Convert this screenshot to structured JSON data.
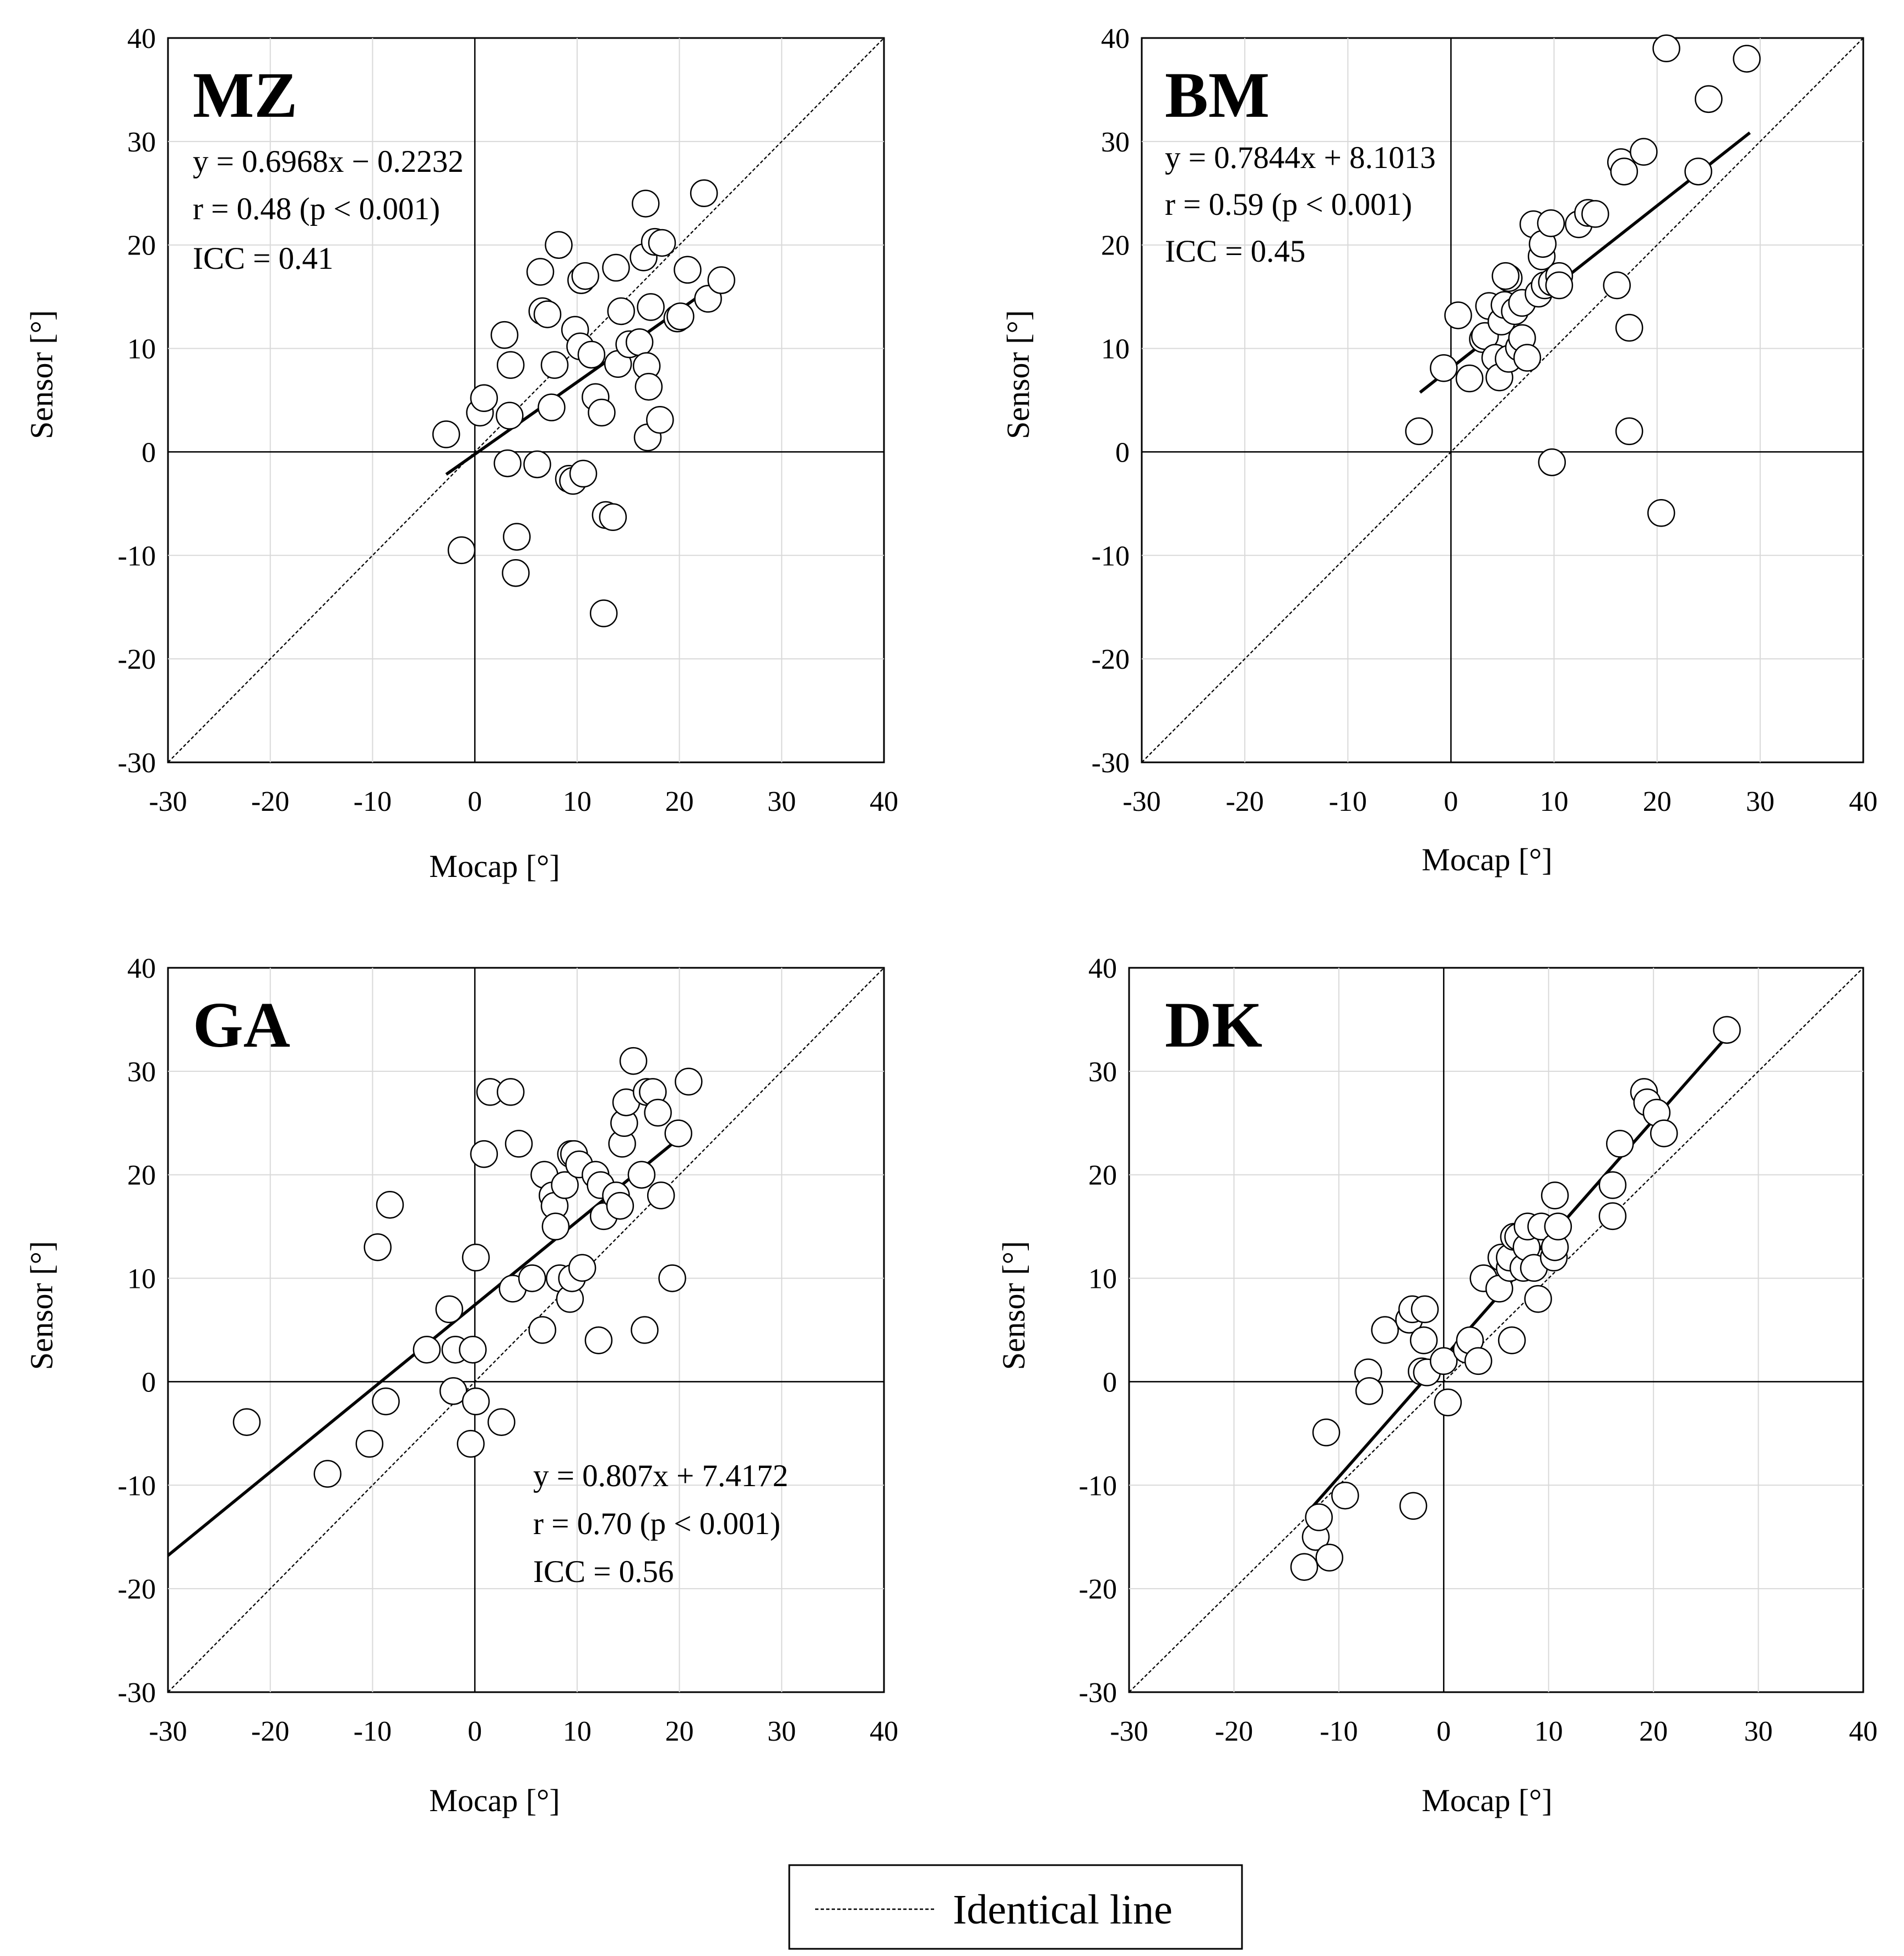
{
  "chart_data": [
    {
      "type": "scatter",
      "title": "MZ",
      "xlabel": "Mocap [°]",
      "ylabel": "Sensor [°]",
      "xlim": [
        -30,
        40
      ],
      "ylim": [
        -30,
        40
      ],
      "xticks": [
        -30,
        -20,
        -10,
        0,
        10,
        20,
        30,
        40
      ],
      "yticks": [
        -30,
        -20,
        -10,
        0,
        10,
        20,
        30,
        40
      ],
      "grid": true,
      "annotation_position": "top-left",
      "annotations": [
        "y = 0.6968x − 0.2232",
        "r = 0.48 (p < 0.001)",
        "ICC = 0.41"
      ],
      "fit": {
        "slope": 0.6968,
        "intercept": -0.2232,
        "x_range": [
          -2.8,
          24
        ]
      },
      "identity_line": true,
      "points": [
        [
          -2.8,
          1.7
        ],
        [
          -1.3,
          -9.5
        ],
        [
          0.5,
          3.8
        ],
        [
          0.9,
          5.2
        ],
        [
          2.9,
          11.3
        ],
        [
          3.5,
          8.4
        ],
        [
          3.4,
          3.5
        ],
        [
          3.2,
          -1.1
        ],
        [
          4.1,
          -8.2
        ],
        [
          4.0,
          -11.7
        ],
        [
          6.1,
          -1.2
        ],
        [
          6.4,
          17.4
        ],
        [
          6.6,
          13.6
        ],
        [
          7.1,
          13.3
        ],
        [
          7.5,
          4.3
        ],
        [
          7.8,
          8.4
        ],
        [
          8.2,
          20.0
        ],
        [
          9.2,
          -2.6
        ],
        [
          9.6,
          -2.8
        ],
        [
          9.8,
          11.8
        ],
        [
          10.3,
          10.2
        ],
        [
          10.4,
          16.6
        ],
        [
          10.8,
          17.0
        ],
        [
          10.6,
          -2.1
        ],
        [
          11.4,
          9.4
        ],
        [
          11.8,
          5.3
        ],
        [
          12.4,
          3.8
        ],
        [
          12.6,
          -15.6
        ],
        [
          12.8,
          -6.1
        ],
        [
          13.5,
          -6.3
        ],
        [
          13.8,
          17.8
        ],
        [
          14.0,
          8.5
        ],
        [
          14.3,
          13.6
        ],
        [
          15.1,
          10.4
        ],
        [
          16.1,
          10.6
        ],
        [
          16.5,
          18.8
        ],
        [
          16.7,
          24.0
        ],
        [
          16.8,
          8.3
        ],
        [
          17.2,
          14.0
        ],
        [
          17.0,
          6.3
        ],
        [
          16.9,
          1.4
        ],
        [
          17.6,
          20.3
        ],
        [
          18.3,
          20.2
        ],
        [
          18.1,
          3.1
        ],
        [
          19.8,
          12.9
        ],
        [
          20.1,
          13.1
        ],
        [
          20.8,
          17.6
        ],
        [
          22.4,
          25.0
        ],
        [
          22.8,
          14.8
        ],
        [
          24.1,
          16.6
        ]
      ]
    },
    {
      "type": "scatter",
      "title": "BM",
      "xlabel": "Mocap [°]",
      "ylabel": "Sensor [°]",
      "xlim": [
        -30,
        40
      ],
      "ylim": [
        -30,
        40
      ],
      "xticks": [
        -30,
        -20,
        -10,
        0,
        10,
        20,
        30,
        40
      ],
      "yticks": [
        -30,
        -20,
        -10,
        0,
        10,
        20,
        30,
        40
      ],
      "grid": true,
      "annotation_position": "top-left",
      "annotations": [
        "y = 0.7844x + 8.1013",
        "r = 0.59 (p < 0.001)",
        "ICC = 0.45"
      ],
      "fit": {
        "slope": 0.7844,
        "intercept": 8.1013,
        "x_range": [
          -3,
          29
        ]
      },
      "identity_line": true,
      "points": [
        [
          -3.1,
          2.0
        ],
        [
          -0.7,
          8.1
        ],
        [
          0.7,
          13.2
        ],
        [
          1.8,
          7.1
        ],
        [
          3.1,
          10.9
        ],
        [
          3.3,
          11.2
        ],
        [
          3.7,
          14.1
        ],
        [
          4.3,
          9.1
        ],
        [
          4.7,
          7.2
        ],
        [
          4.9,
          12.6
        ],
        [
          5.2,
          14.2
        ],
        [
          5.6,
          16.8
        ],
        [
          5.3,
          17.0
        ],
        [
          5.6,
          9.0
        ],
        [
          6.2,
          13.6
        ],
        [
          6.6,
          10.1
        ],
        [
          6.9,
          14.4
        ],
        [
          6.9,
          11.0
        ],
        [
          7.4,
          9.1
        ],
        [
          8.0,
          22.0
        ],
        [
          8.5,
          15.3
        ],
        [
          8.8,
          18.9
        ],
        [
          8.9,
          20.1
        ],
        [
          9.1,
          16.1
        ],
        [
          9.7,
          22.1
        ],
        [
          9.8,
          16.4
        ],
        [
          9.8,
          -1.0
        ],
        [
          10.5,
          17.0
        ],
        [
          10.5,
          16.1
        ],
        [
          12.4,
          22.0
        ],
        [
          13.3,
          23.1
        ],
        [
          14.0,
          23.0
        ],
        [
          16.1,
          16.1
        ],
        [
          16.5,
          28.0
        ],
        [
          16.8,
          27.1
        ],
        [
          17.3,
          12.0
        ],
        [
          17.3,
          2.0
        ],
        [
          18.7,
          29.0
        ],
        [
          20.4,
          -5.9
        ],
        [
          20.9,
          39.0
        ],
        [
          24.0,
          27.1
        ],
        [
          25.0,
          34.1
        ],
        [
          28.7,
          38.0
        ]
      ]
    },
    {
      "type": "scatter",
      "title": "GA",
      "xlabel": "Mocap [°]",
      "ylabel": "Sensor [°]",
      "xlim": [
        -30,
        40
      ],
      "ylim": [
        -30,
        40
      ],
      "xticks": [
        -30,
        -20,
        -10,
        0,
        10,
        20,
        30,
        40
      ],
      "yticks": [
        -30,
        -20,
        -10,
        0,
        10,
        20,
        30,
        40
      ],
      "grid": true,
      "annotation_position": "bottom-center",
      "annotations": [
        "y = 0.807x + 7.4172",
        "r = 0.70 (p < 0.001)",
        "ICC = 0.56"
      ],
      "fit": {
        "slope": 0.807,
        "intercept": 7.4172,
        "x_range": [
          -30,
          21
        ]
      },
      "identity_line": true,
      "points": [
        [
          -22.3,
          -3.9
        ],
        [
          -14.4,
          -8.9
        ],
        [
          -10.3,
          -6.0
        ],
        [
          -9.5,
          13.0
        ],
        [
          -8.7,
          -1.9
        ],
        [
          -8.3,
          17.1
        ],
        [
          -4.7,
          3.1
        ],
        [
          -2.5,
          7.0
        ],
        [
          -2.1,
          -0.9
        ],
        [
          -1.9,
          3.1
        ],
        [
          -0.4,
          -6.0
        ],
        [
          -0.2,
          3.1
        ],
        [
          0.1,
          12.0
        ],
        [
          0.1,
          -1.9
        ],
        [
          0.9,
          22.0
        ],
        [
          1.5,
          28.0
        ],
        [
          2.6,
          -3.9
        ],
        [
          3.5,
          28.0
        ],
        [
          3.7,
          9.0
        ],
        [
          4.3,
          23.0
        ],
        [
          5.6,
          10.0
        ],
        [
          6.6,
          5.0
        ],
        [
          6.8,
          20.0
        ],
        [
          7.6,
          18.0
        ],
        [
          7.8,
          17.0
        ],
        [
          7.9,
          15.0
        ],
        [
          8.3,
          10.0
        ],
        [
          8.8,
          19.0
        ],
        [
          9.3,
          8.0
        ],
        [
          9.4,
          22.0
        ],
        [
          9.5,
          10.0
        ],
        [
          9.7,
          22.0
        ],
        [
          10.2,
          21.0
        ],
        [
          10.5,
          11.0
        ],
        [
          11.8,
          20.0
        ],
        [
          12.1,
          4.0
        ],
        [
          12.3,
          19.0
        ],
        [
          12.6,
          16.0
        ],
        [
          13.8,
          18.0
        ],
        [
          14.2,
          17.0
        ],
        [
          14.4,
          23.0
        ],
        [
          14.6,
          25.0
        ],
        [
          14.8,
          27.0
        ],
        [
          15.5,
          31.0
        ],
        [
          16.3,
          20.0
        ],
        [
          16.6,
          5.0
        ],
        [
          16.8,
          28.0
        ],
        [
          17.4,
          28.0
        ],
        [
          17.9,
          26.0
        ],
        [
          18.2,
          18.0
        ],
        [
          19.3,
          10.0
        ],
        [
          19.9,
          24.0
        ],
        [
          20.9,
          29.0
        ]
      ]
    },
    {
      "type": "scatter",
      "title": "DK",
      "xlabel": "Mocap [°]",
      "ylabel": "Sensor [°]",
      "xlim": [
        -30,
        40
      ],
      "ylim": [
        -30,
        40
      ],
      "xticks": [
        -30,
        -20,
        -10,
        0,
        10,
        20,
        30,
        40
      ],
      "yticks": [
        -30,
        -20,
        -10,
        0,
        10,
        20,
        30,
        40
      ],
      "grid": true,
      "annotation_position": "none",
      "annotations": [],
      "fit": {
        "slope": 1.15,
        "intercept": 2.3,
        "x_range": [
          -13,
          27
        ]
      },
      "identity_line": true,
      "points": [
        [
          -13.3,
          -17.9
        ],
        [
          -12.2,
          -15.0
        ],
        [
          -11.9,
          -13.1
        ],
        [
          -11.2,
          -4.9
        ],
        [
          -10.9,
          -17.0
        ],
        [
          -9.4,
          -11.0
        ],
        [
          -7.2,
          0.9
        ],
        [
          -7.1,
          -0.9
        ],
        [
          -5.6,
          5.0
        ],
        [
          -3.3,
          6.0
        ],
        [
          -3.0,
          7.0
        ],
        [
          -2.9,
          -12.0
        ],
        [
          -2.1,
          1.0
        ],
        [
          -1.9,
          4.0
        ],
        [
          -1.8,
          7.0
        ],
        [
          -1.6,
          0.9
        ],
        [
          0.0,
          2.0
        ],
        [
          0.4,
          -2.0
        ],
        [
          2.2,
          3.1
        ],
        [
          2.5,
          4.0
        ],
        [
          3.3,
          2.0
        ],
        [
          3.8,
          10.0
        ],
        [
          5.3,
          9.0
        ],
        [
          5.5,
          12.0
        ],
        [
          6.3,
          11.0
        ],
        [
          6.3,
          12.0
        ],
        [
          6.5,
          4.0
        ],
        [
          6.7,
          14.0
        ],
        [
          7.1,
          14.0
        ],
        [
          7.6,
          11.0
        ],
        [
          7.9,
          13.0
        ],
        [
          8.0,
          15.0
        ],
        [
          8.6,
          11.0
        ],
        [
          9.0,
          8.0
        ],
        [
          9.3,
          15.0
        ],
        [
          10.5,
          12.0
        ],
        [
          10.6,
          13.0
        ],
        [
          10.6,
          18.0
        ],
        [
          10.9,
          15.0
        ],
        [
          16.1,
          16.0
        ],
        [
          16.1,
          19.0
        ],
        [
          16.8,
          23.0
        ],
        [
          19.1,
          28.0
        ],
        [
          19.4,
          27.0
        ],
        [
          20.3,
          26.0
        ],
        [
          21.0,
          24.0
        ],
        [
          27.0,
          34.0
        ]
      ]
    }
  ],
  "legend": {
    "label": "Identical line",
    "position": "bottom-center"
  }
}
